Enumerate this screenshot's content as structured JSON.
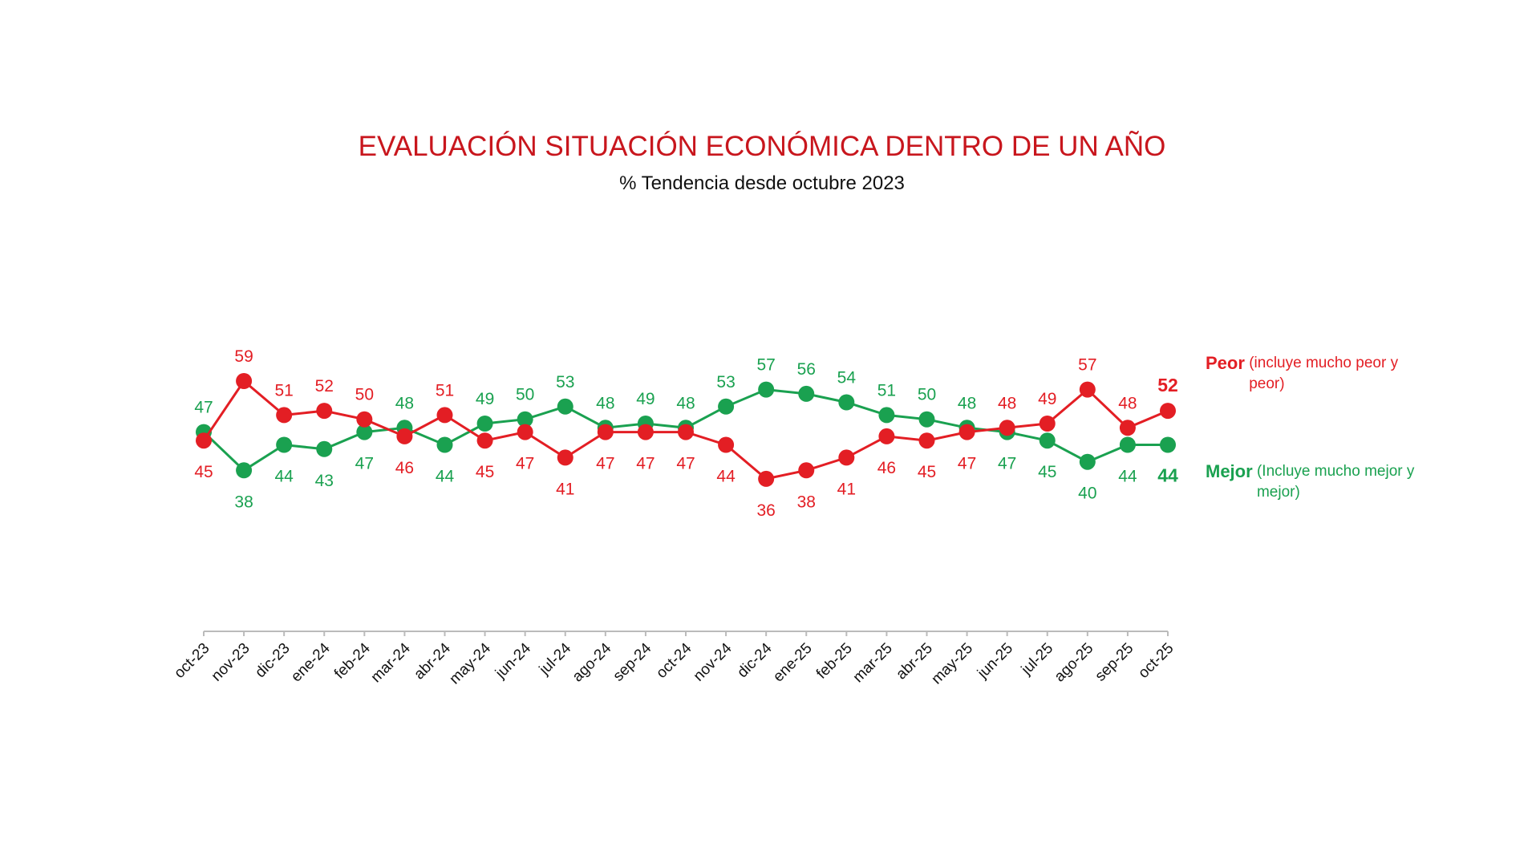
{
  "chart_data": {
    "type": "line",
    "title": "EVALUACIÓN SITUACIÓN ECONÓMICA DENTRO DE UN AÑO",
    "subtitle": "% Tendencia desde octubre 2023",
    "categories": [
      "oct-23",
      "nov-23",
      "dic-23",
      "ene-24",
      "feb-24",
      "mar-24",
      "abr-24",
      "may-24",
      "jun-24",
      "jul-24",
      "ago-24",
      "sep-24",
      "oct-24",
      "nov-24",
      "dic-24",
      "ene-25",
      "feb-25",
      "mar-25",
      "abr-25",
      "may-25",
      "jun-25",
      "jul-25",
      "ago-25",
      "sep-25",
      "oct-25"
    ],
    "series": [
      {
        "name": "Peor",
        "legend_note": "(incluye mucho peor y peor)",
        "color": "#e31e24",
        "values": [
          45,
          59,
          51,
          52,
          50,
          46,
          51,
          45,
          47,
          41,
          47,
          47,
          47,
          44,
          36,
          38,
          41,
          46,
          45,
          47,
          48,
          49,
          57,
          48,
          52
        ]
      },
      {
        "name": "Mejor",
        "legend_note": "(Incluye mucho mejor y mejor)",
        "color": "#1aa150",
        "values": [
          47,
          38,
          44,
          43,
          47,
          48,
          44,
          49,
          50,
          53,
          48,
          49,
          48,
          53,
          57,
          56,
          54,
          51,
          50,
          48,
          47,
          45,
          40,
          44,
          44
        ]
      }
    ],
    "data_labels": true,
    "grid": false,
    "legend_placement": "right"
  }
}
